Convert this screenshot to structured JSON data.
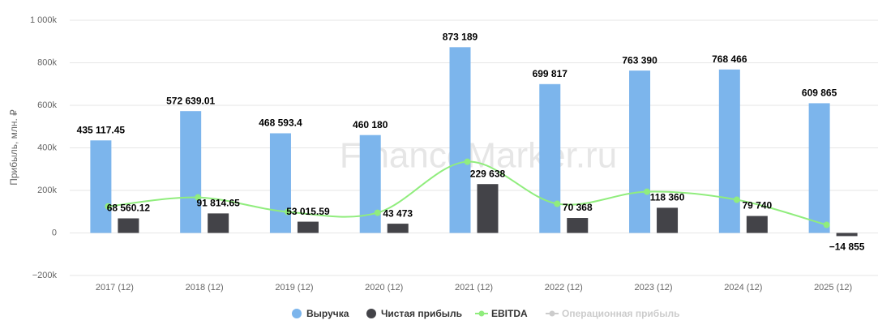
{
  "chart_data": {
    "type": "bar",
    "watermark": "FinanceMarker.ru",
    "y_axis_label": "Прибыль, млн. ₽",
    "categories": [
      "2017 (12)",
      "2018 (12)",
      "2019 (12)",
      "2020 (12)",
      "2021 (12)",
      "2022 (12)",
      "2023 (12)",
      "2024 (12)",
      "2025 (12)"
    ],
    "ylim": [
      -200000,
      1000000
    ],
    "yticks": [
      {
        "value": -200000,
        "label": "−200k"
      },
      0,
      {
        "value": 200000,
        "label": "200k"
      },
      {
        "value": 400000,
        "label": "400k"
      },
      {
        "value": 600000,
        "label": "600k"
      },
      {
        "value": 800000,
        "label": "800k"
      },
      {
        "value": 1000000,
        "label": "1 000k"
      }
    ],
    "grid": true,
    "legend": "bottom",
    "series": [
      {
        "name": "Выручка",
        "color": "#7cb5ec",
        "kind": "bar",
        "values": [
          435117.45,
          572639.01,
          468593.4,
          460180,
          873189,
          699817,
          763390,
          768466,
          609865
        ],
        "value_labels": [
          "435 117.45",
          "572 639.01",
          "468 593.4",
          "460 180",
          "873 189",
          "699 817",
          "763 390",
          "768 466",
          "609 865"
        ]
      },
      {
        "name": "Чистая прибыль",
        "color": "#434348",
        "kind": "bar",
        "values": [
          68560.12,
          91814.65,
          53015.59,
          43473,
          229638,
          70368,
          118360,
          79740,
          -14855
        ],
        "value_labels": [
          "68 560.12",
          "91 814.65",
          "53 015.59",
          "43 473",
          "229 638",
          "70 368",
          "118 360",
          "79 740",
          "−14 855"
        ]
      },
      {
        "name": "EBITDA",
        "color": "#90ed7d",
        "kind": "line",
        "values": [
          125000,
          167000,
          99000,
          95000,
          335000,
          137000,
          194000,
          156000,
          38000
        ]
      },
      {
        "name": "Операционная прибыль",
        "color": "#cccccc",
        "kind": "line",
        "hidden": true,
        "values": [
          null,
          null,
          null,
          null,
          null,
          null,
          null,
          null,
          null
        ]
      }
    ]
  }
}
